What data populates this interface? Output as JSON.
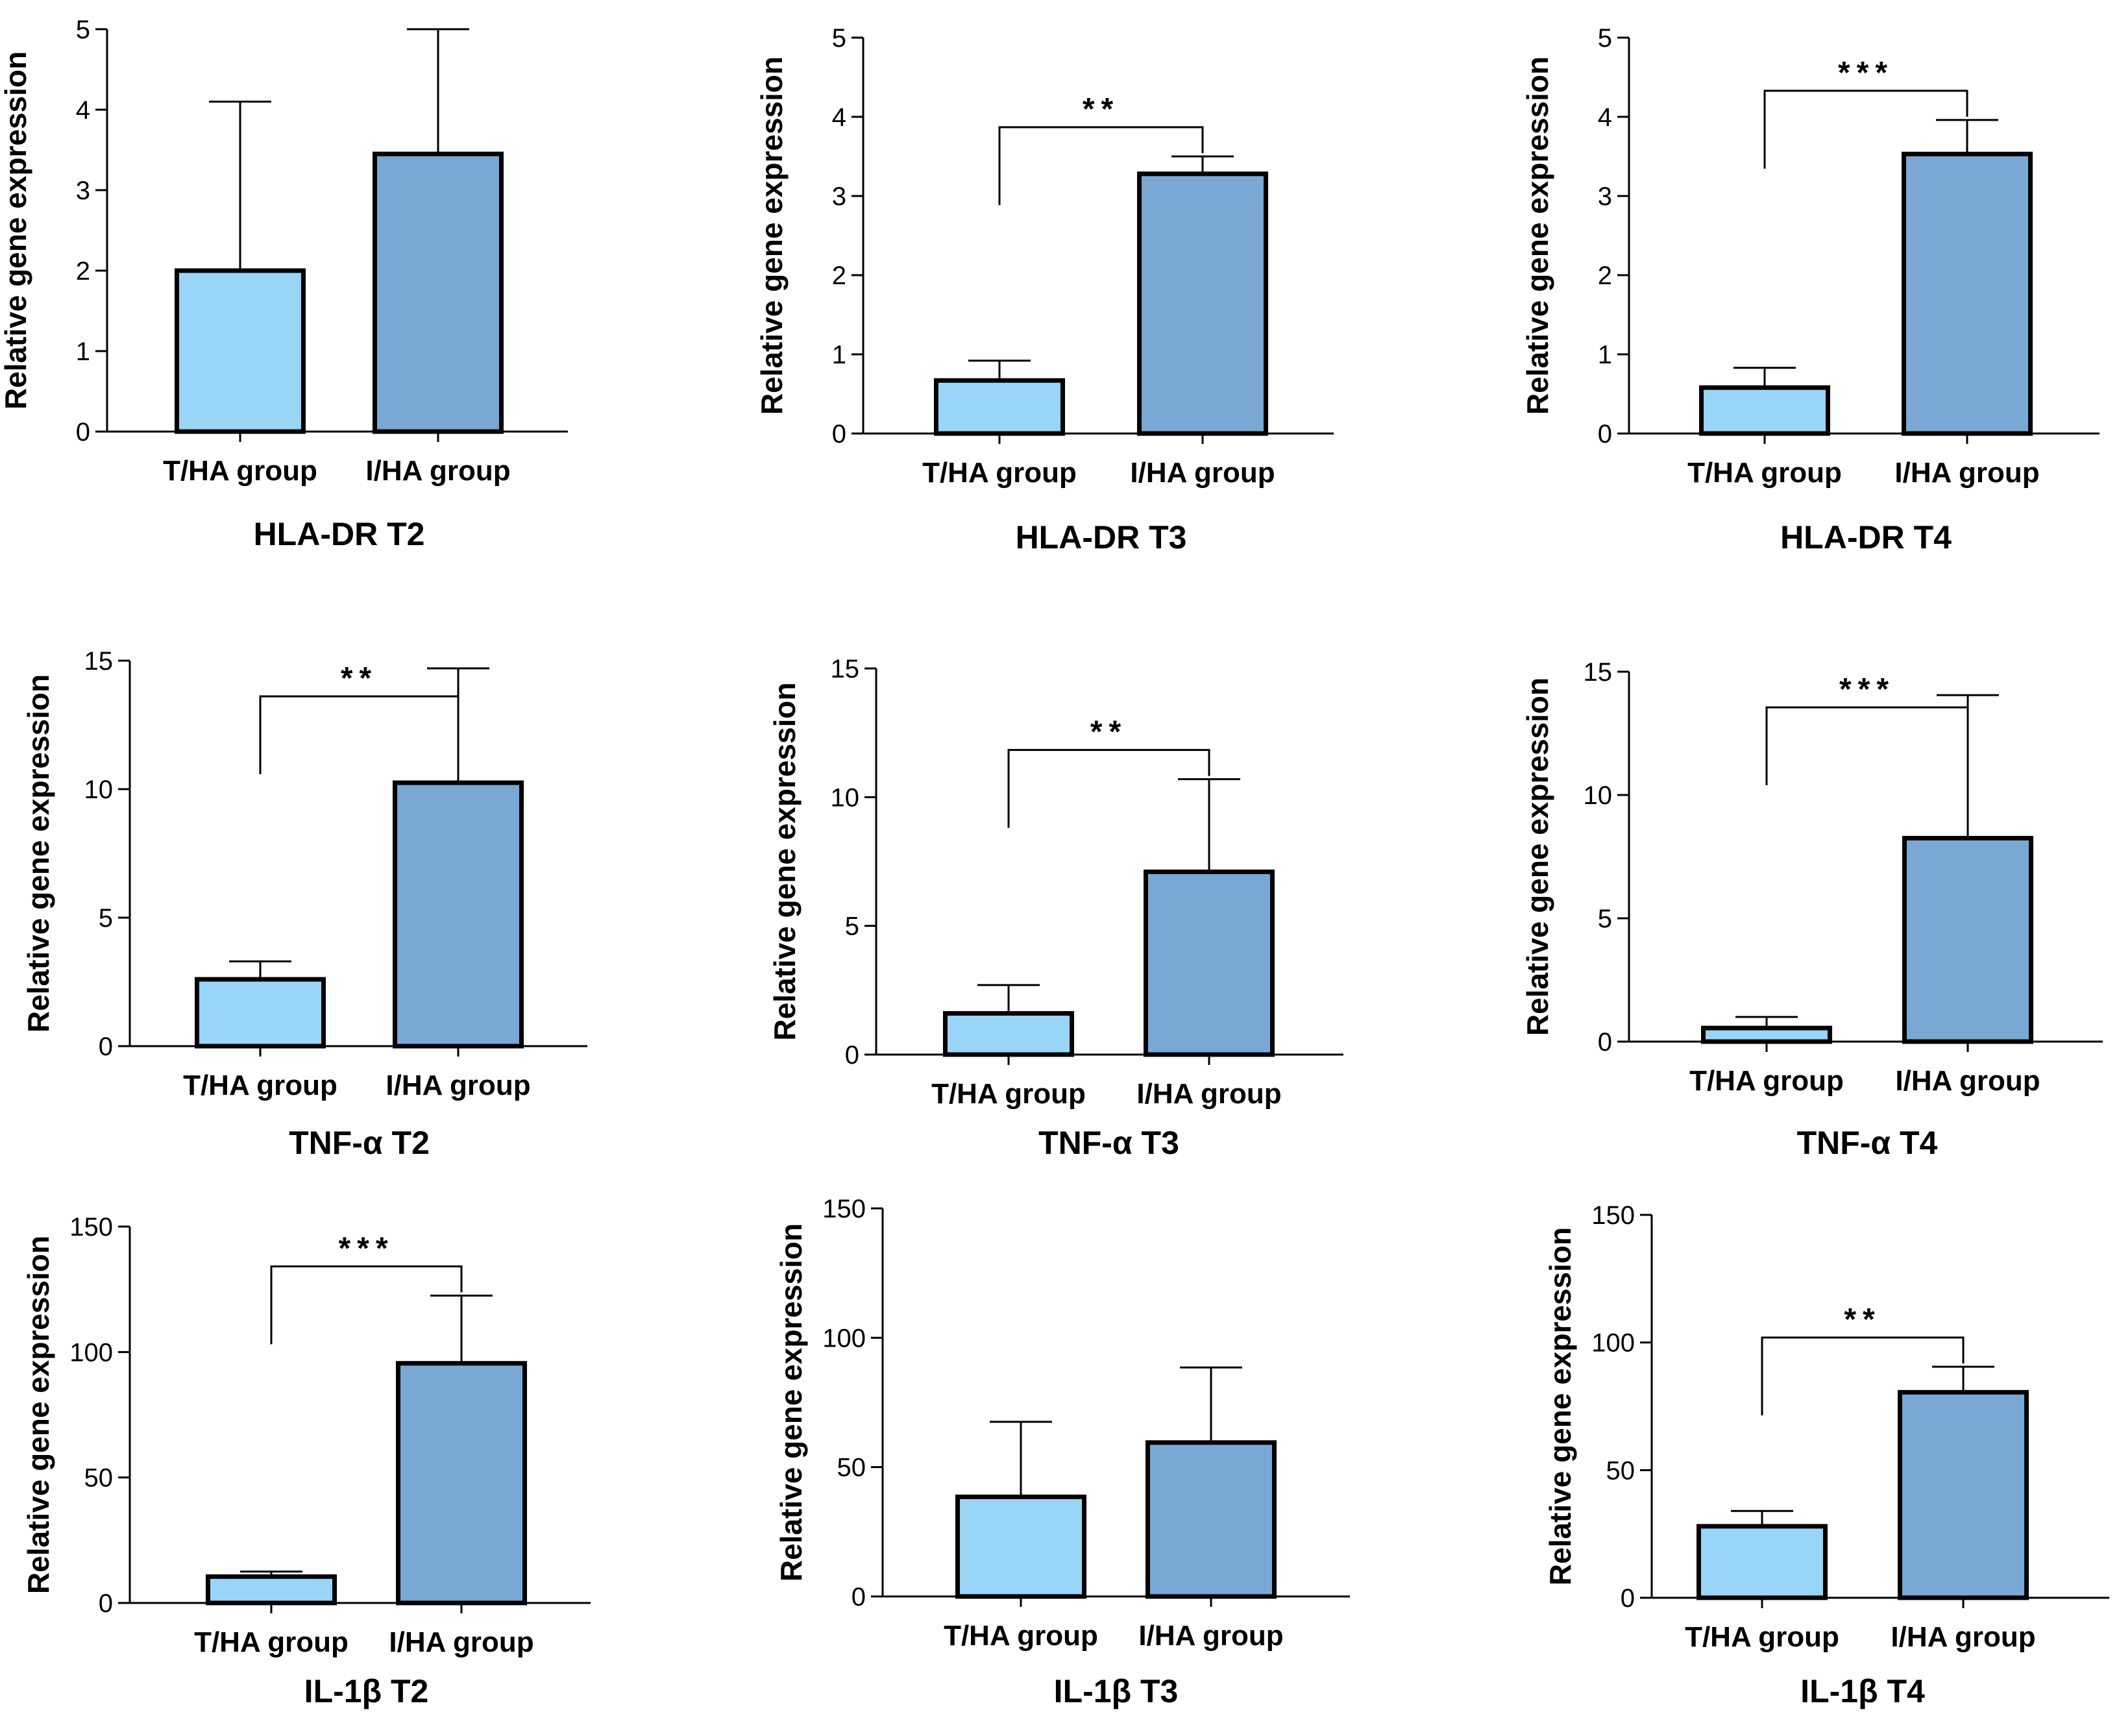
{
  "chart_data": [
    {
      "type": "bar",
      "title": "HLA-DR T2",
      "ylabel": "Relative gene expression",
      "categories": [
        "T/HA group",
        "I/HA group"
      ],
      "values": [
        2.0,
        3.45
      ],
      "error_plus": [
        2.1,
        1.55
      ],
      "yticks": [
        0,
        1,
        2,
        3,
        4,
        5
      ],
      "ylim": [
        0,
        5
      ],
      "significance": "",
      "colors": [
        "#99d5f7",
        "#79a8d4"
      ]
    },
    {
      "type": "bar",
      "title": "HLA-DR T3",
      "ylabel": "Relative gene expression",
      "categories": [
        "T/HA group",
        "I/HA group"
      ],
      "values": [
        0.67,
        3.28
      ],
      "error_plus": [
        0.25,
        0.22
      ],
      "yticks": [
        0,
        1,
        2,
        3,
        4,
        5
      ],
      "ylim": [
        0,
        5
      ],
      "significance": "**",
      "colors": [
        "#99d5f7",
        "#79a8d4"
      ]
    },
    {
      "type": "bar",
      "title": "HLA-DR T4",
      "ylabel": "Relative gene expression",
      "categories": [
        "T/HA group",
        "I/HA group"
      ],
      "values": [
        0.58,
        3.53
      ],
      "error_plus": [
        0.25,
        0.43
      ],
      "yticks": [
        0,
        1,
        2,
        3,
        4,
        5
      ],
      "ylim": [
        0,
        5
      ],
      "significance": "***",
      "colors": [
        "#99d5f7",
        "#79a8d4"
      ]
    },
    {
      "type": "bar",
      "title": "TNF-α T2",
      "ylabel": "Relative gene expression",
      "categories": [
        "T/HA group",
        "I/HA group"
      ],
      "values": [
        2.6,
        10.25
      ],
      "error_plus": [
        0.7,
        4.45
      ],
      "yticks": [
        0,
        5,
        10,
        15
      ],
      "ylim": [
        0,
        15
      ],
      "significance": "**",
      "colors": [
        "#99d5f7",
        "#79a8d4"
      ]
    },
    {
      "type": "bar",
      "title": "TNF-α T3",
      "ylabel": "Relative gene expression",
      "categories": [
        "T/HA group",
        "I/HA group"
      ],
      "values": [
        1.6,
        7.1
      ],
      "error_plus": [
        1.1,
        3.6
      ],
      "yticks": [
        0,
        5,
        10,
        15
      ],
      "ylim": [
        0,
        15
      ],
      "significance": "**",
      "colors": [
        "#99d5f7",
        "#79a8d4"
      ]
    },
    {
      "type": "bar",
      "title": "TNF-α T4",
      "ylabel": "Relative gene expression",
      "categories": [
        "T/HA group",
        "I/HA group"
      ],
      "values": [
        0.55,
        8.25
      ],
      "error_plus": [
        0.45,
        5.8
      ],
      "yticks": [
        0,
        5,
        10,
        15
      ],
      "ylim": [
        0,
        15
      ],
      "significance": "***",
      "colors": [
        "#99d5f7",
        "#79a8d4"
      ]
    },
    {
      "type": "bar",
      "title": "IL-1β T2",
      "ylabel": "Relative gene expression",
      "categories": [
        "T/HA group",
        "I/HA group"
      ],
      "values": [
        10.5,
        95.5
      ],
      "error_plus": [
        2.0,
        27.0
      ],
      "yticks": [
        0,
        50,
        100,
        150
      ],
      "ylim": [
        0,
        150
      ],
      "significance": "***",
      "colors": [
        "#99d5f7",
        "#79a8d4"
      ]
    },
    {
      "type": "bar",
      "title": "IL-1β T3",
      "ylabel": "Relative gene expression",
      "categories": [
        "T/HA group",
        "I/HA group"
      ],
      "values": [
        38.5,
        59.5
      ],
      "error_plus": [
        29.0,
        29.0
      ],
      "yticks": [
        0,
        50,
        100,
        150
      ],
      "ylim": [
        0,
        150
      ],
      "significance": "",
      "colors": [
        "#99d5f7",
        "#79a8d4"
      ]
    },
    {
      "type": "bar",
      "title": "IL-1β T4",
      "ylabel": "Relative gene expression",
      "categories": [
        "T/HA group",
        "I/HA group"
      ],
      "values": [
        28.0,
        80.5
      ],
      "error_plus": [
        6.0,
        10.0
      ],
      "yticks": [
        0,
        50,
        100,
        150
      ],
      "ylim": [
        0,
        150
      ],
      "significance": "**",
      "colors": [
        "#99d5f7",
        "#79a8d4"
      ]
    }
  ]
}
